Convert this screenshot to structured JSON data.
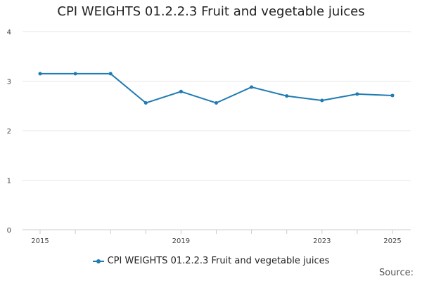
{
  "chart_data": {
    "type": "line",
    "title": "CPI WEIGHTS 01.2.2.3 Fruit and vegetable juices",
    "x": [
      2015,
      2016,
      2017,
      2018,
      2019,
      2020,
      2021,
      2022,
      2023,
      2024,
      2025
    ],
    "series": [
      {
        "name": "CPI WEIGHTS 01.2.2.3 Fruit and vegetable juices",
        "values": [
          3.15,
          3.15,
          3.15,
          2.56,
          2.79,
          2.56,
          2.88,
          2.7,
          2.61,
          2.74,
          2.71
        ]
      }
    ],
    "x_tick_labels": [
      "2015",
      "2019",
      "2023",
      "2025"
    ],
    "y_ticks": [
      0,
      1,
      2,
      3,
      4
    ],
    "xlim": [
      2015,
      2025
    ],
    "ylim": [
      0,
      4
    ],
    "grid": true,
    "legend_position": "bottom",
    "line_color": "#1f7bb3"
  },
  "source_label": "Source:"
}
